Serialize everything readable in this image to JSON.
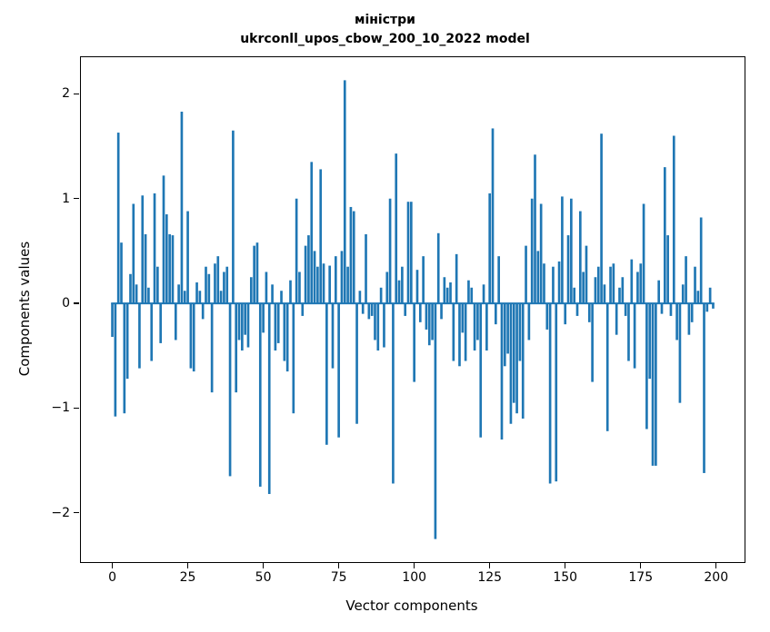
{
  "figure": {
    "title_line1": "міністри",
    "title_line2": "ukrconll_upos_cbow_200_10_2022 model"
  },
  "chart_data": {
    "type": "bar",
    "title": "міністри\nukrconll_upos_cbow_200_10_2022 model",
    "xlabel": "Vector components",
    "ylabel": "Components values",
    "bar_color": "#1f77b4",
    "x_start": 0,
    "x_step": 1,
    "xlim": [
      -10.4,
      209.4
    ],
    "ylim": [
      -2.47,
      2.35
    ],
    "xticks": [
      0,
      25,
      50,
      75,
      100,
      125,
      150,
      175,
      200
    ],
    "yticks": [
      -2,
      -1,
      0,
      1,
      2
    ],
    "zero_line": true,
    "values": [
      -0.32,
      -1.08,
      1.63,
      0.58,
      -1.05,
      -0.72,
      0.28,
      0.95,
      0.18,
      -0.62,
      1.03,
      0.66,
      0.15,
      -0.55,
      1.05,
      0.35,
      -0.38,
      1.22,
      0.85,
      0.66,
      0.65,
      -0.35,
      0.18,
      1.83,
      0.12,
      0.88,
      -0.62,
      -0.65,
      0.2,
      0.12,
      -0.15,
      0.35,
      0.28,
      -0.85,
      0.38,
      0.45,
      0.12,
      0.3,
      0.35,
      -1.65,
      1.65,
      -0.85,
      -0.35,
      -0.45,
      -0.3,
      -0.42,
      0.25,
      0.55,
      0.58,
      -1.75,
      -0.28,
      0.3,
      -1.82,
      0.18,
      -0.45,
      -0.38,
      0.12,
      -0.55,
      -0.65,
      0.22,
      -1.05,
      1.0,
      0.3,
      -0.12,
      0.55,
      0.65,
      1.35,
      0.5,
      0.35,
      1.28,
      0.38,
      -1.35,
      0.36,
      -0.62,
      0.45,
      -1.28,
      0.5,
      2.13,
      0.35,
      0.92,
      0.88,
      -1.15,
      0.12,
      -0.1,
      0.66,
      -0.15,
      -0.12,
      -0.35,
      -0.45,
      0.15,
      -0.42,
      0.3,
      1.0,
      -1.72,
      1.43,
      0.22,
      0.35,
      -0.12,
      0.97,
      0.97,
      -0.75,
      0.32,
      -0.18,
      0.45,
      -0.25,
      -0.4,
      -0.35,
      -2.25,
      0.67,
      -0.15,
      0.25,
      0.15,
      0.2,
      -0.55,
      0.47,
      -0.6,
      -0.28,
      -0.55,
      0.22,
      0.15,
      -0.45,
      -0.35,
      -1.28,
      0.18,
      -0.45,
      1.05,
      1.67,
      -0.2,
      0.45,
      -1.3,
      -0.6,
      -0.48,
      -1.15,
      -0.95,
      -1.05,
      -0.55,
      -1.1,
      0.55,
      -0.35,
      1.0,
      1.42,
      0.5,
      0.95,
      0.38,
      -0.25,
      -1.72,
      0.35,
      -1.7,
      0.4,
      1.02,
      -0.2,
      0.65,
      1.0,
      0.15,
      -0.12,
      0.88,
      0.3,
      0.55,
      -0.18,
      -0.75,
      0.25,
      0.35,
      1.62,
      0.18,
      -1.22,
      0.35,
      0.38,
      -0.3,
      0.15,
      0.25,
      -0.12,
      -0.55,
      0.42,
      -0.62,
      0.3,
      0.38,
      0.95,
      -1.2,
      -0.72,
      -1.55,
      -1.55,
      0.22,
      -0.1,
      1.3,
      0.65,
      -0.12,
      1.6,
      -0.35,
      -0.95,
      0.18,
      0.45,
      -0.3,
      -0.18,
      0.35,
      0.12,
      0.82,
      -1.62,
      -0.08,
      0.15,
      -0.05
    ]
  }
}
